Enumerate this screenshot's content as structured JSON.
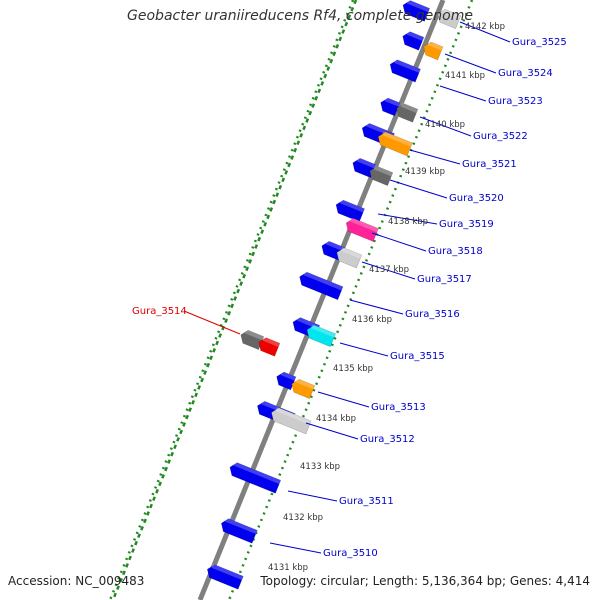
{
  "title": "Geobacter uraniireducens Rf4, complete genome",
  "footer": {
    "accession": "Accession: NC_009483",
    "summary": "Topology: circular; Length: 5,136,364 bp; Genes: 4,414"
  },
  "colors": {
    "backbone": "#808080",
    "tick": "#228822",
    "blue": "#0000ee",
    "orange": "#ff9900",
    "dark_gray": "#666666",
    "light_gray": "#cccccc",
    "magenta": "#ff2299",
    "cyan": "#00e5ee",
    "red": "#ee0000",
    "label_blue": "#0000cc",
    "label_red": "#dd0000"
  },
  "kbp_labels": [
    "4131 kbp",
    "4132 kbp",
    "4133 kbp",
    "4134 kbp",
    "4135 kbp",
    "4136 kbp",
    "4137 kbp",
    "4138 kbp",
    "4139 kbp",
    "4140 kbp",
    "4141 kbp",
    "4142 kbp"
  ],
  "gene_labels": [
    {
      "text": "Gura_3525",
      "highlight": false
    },
    {
      "text": "Gura_3524",
      "highlight": false
    },
    {
      "text": "Gura_3523",
      "highlight": false
    },
    {
      "text": "Gura_3522",
      "highlight": false
    },
    {
      "text": "Gura_3521",
      "highlight": false
    },
    {
      "text": "Gura_3520",
      "highlight": false
    },
    {
      "text": "Gura_3519",
      "highlight": false
    },
    {
      "text": "Gura_3518",
      "highlight": false
    },
    {
      "text": "Gura_3517",
      "highlight": false
    },
    {
      "text": "Gura_3516",
      "highlight": false
    },
    {
      "text": "Gura_3515",
      "highlight": false
    },
    {
      "text": "Gura_3514",
      "highlight": true
    },
    {
      "text": "Gura_3513",
      "highlight": false
    },
    {
      "text": "Gura_3512",
      "highlight": false
    },
    {
      "text": "Gura_3511",
      "highlight": false
    },
    {
      "text": "Gura_3510",
      "highlight": false
    }
  ]
}
